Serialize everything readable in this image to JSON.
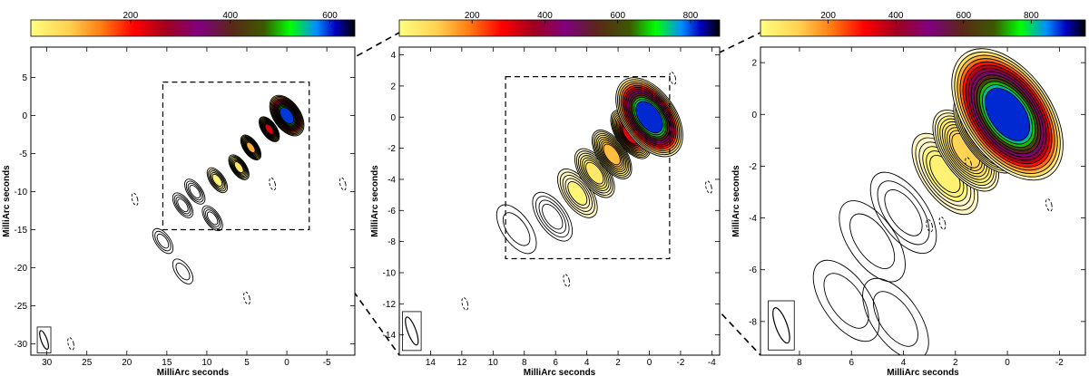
{
  "chart_data": [
    {
      "type": "contour",
      "xlabel": "MilliArc seconds",
      "ylabel": "MilliArc seconds",
      "xlim": [
        32,
        -8.5
      ],
      "ylim": [
        -31.5,
        9
      ],
      "xticks": [
        30,
        25,
        20,
        15,
        10,
        5,
        0,
        -5
      ],
      "xticklabels": [
        "30",
        "25",
        "20",
        "15",
        "10",
        "5",
        "0",
        "-5"
      ],
      "yticks": [
        5,
        0,
        -5,
        -10,
        -15,
        -20,
        -25,
        -30
      ],
      "yticklabels": [
        "5",
        "0",
        "-5",
        "-10",
        "-15",
        "-20",
        "-25",
        "-30"
      ],
      "colorbar": {
        "range": [
          0,
          650
        ],
        "ticks": [
          200,
          400,
          600
        ],
        "ticklabels": [
          "200",
          "400",
          "600"
        ]
      },
      "zoom_box": {
        "x": [
          15.5,
          -2.8
        ],
        "y": [
          -15,
          4.4
        ]
      },
      "beam_box": {
        "x": [
          31.2,
          29.5
        ],
        "y": [
          -31.2,
          -27.8
        ]
      },
      "core": {
        "x": 0,
        "y": 0,
        "peak": 650
      },
      "jet_components": [
        {
          "x": 0,
          "y": 0,
          "peak": 650
        },
        {
          "x": 2.2,
          "y": -1.8,
          "peak": 260
        },
        {
          "x": 4.5,
          "y": -4.2,
          "peak": 120
        },
        {
          "x": 6,
          "y": -6.8,
          "peak": 50
        },
        {
          "x": 8.7,
          "y": -8.5,
          "peak": 25
        },
        {
          "x": 11.5,
          "y": -10,
          "peak": 15
        },
        {
          "x": 13,
          "y": -11.8,
          "peak": 14
        },
        {
          "x": 9.3,
          "y": -13.5,
          "peak": 12
        },
        {
          "x": 15.5,
          "y": -16.5,
          "peak": 8
        },
        {
          "x": 13,
          "y": -20.5,
          "peak": 5
        }
      ]
    },
    {
      "type": "contour",
      "xlabel": "MilliArc seconds",
      "ylabel": "MilliArc seconds",
      "xlim": [
        16,
        -4.5
      ],
      "ylim": [
        -15.3,
        4.5
      ],
      "xticks": [
        14,
        12,
        10,
        8,
        6,
        4,
        2,
        0,
        -2,
        -4
      ],
      "xticklabels": [
        "14",
        "12",
        "10",
        "8",
        "6",
        "4",
        "2",
        "0",
        "-2",
        "-4"
      ],
      "yticks": [
        4,
        2,
        0,
        -2,
        -4,
        -6,
        -8,
        -10,
        -12,
        -14
      ],
      "yticklabels": [
        "4",
        "2",
        "0",
        "-2",
        "-4",
        "-6",
        "-8",
        "-10",
        "-12",
        "-14"
      ],
      "colorbar": {
        "range": [
          0,
          880
        ],
        "ticks": [
          200,
          400,
          600,
          800
        ],
        "ticklabels": [
          "200",
          "400",
          "600",
          "800"
        ]
      },
      "zoom_box": {
        "x": [
          9.2,
          -1.3
        ],
        "y": [
          -9.1,
          2.6
        ]
      },
      "beam_box": {
        "x": [
          15.8,
          14.6
        ],
        "y": [
          -15,
          -12.5
        ]
      },
      "core": {
        "x": 0,
        "y": 0,
        "peak": 880
      },
      "jet_components": [
        {
          "x": 0,
          "y": 0,
          "peak": 880
        },
        {
          "x": 1.2,
          "y": -1.1,
          "peak": 330
        },
        {
          "x": 2.4,
          "y": -2.4,
          "peak": 140
        },
        {
          "x": 3.5,
          "y": -3.6,
          "peak": 60
        },
        {
          "x": 4.6,
          "y": -4.9,
          "peak": 25
        },
        {
          "x": 6.2,
          "y": -6.4,
          "peak": 12
        },
        {
          "x": 8.5,
          "y": -7.2,
          "peak": 6
        }
      ]
    },
    {
      "type": "contour",
      "xlabel": "MilliArc seconds",
      "ylabel": "MilliArc seconds",
      "xlim": [
        9.5,
        -3
      ],
      "ylim": [
        -9.3,
        2.6
      ],
      "xticks": [
        8,
        6,
        4,
        2,
        0,
        -2
      ],
      "xticklabels": [
        "8",
        "6",
        "4",
        "2",
        "0",
        "-2"
      ],
      "yticks": [
        2,
        0,
        -2,
        -4,
        -6,
        -8
      ],
      "yticklabels": [
        "2",
        "0",
        "-2",
        "-4",
        "-6",
        "-8"
      ],
      "colorbar": {
        "range": [
          0,
          960
        ],
        "ticks": [
          200,
          400,
          600,
          800
        ],
        "ticklabels": [
          "200",
          "400",
          "600",
          "800"
        ]
      },
      "beam_box": {
        "x": [
          9.2,
          8.2
        ],
        "y": [
          -9.1,
          -7.2
        ]
      },
      "core": {
        "x": 0,
        "y": 0,
        "peak": 960
      },
      "jet_components": [
        {
          "x": 0,
          "y": 0,
          "peak": 960
        },
        {
          "x": 0.8,
          "y": -0.7,
          "peak": 340
        },
        {
          "x": 1.6,
          "y": -1.4,
          "peak": 120
        },
        {
          "x": 2.4,
          "y": -2.3,
          "peak": 40
        },
        {
          "x": 4,
          "y": -3.8,
          "peak": 10
        },
        {
          "x": 5.2,
          "y": -4.9,
          "peak": 6
        },
        {
          "x": 6.2,
          "y": -7.2,
          "peak": 6
        },
        {
          "x": 4.3,
          "y": -7.9,
          "peak": 5
        }
      ]
    }
  ]
}
